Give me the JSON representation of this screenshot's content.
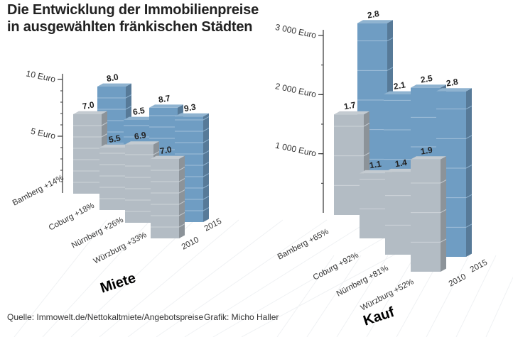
{
  "header": {
    "title_line1": "Die Entwicklung der Immobilienpreise",
    "title_line2": "in ausgewählten fränkischen Städten"
  },
  "footer": {
    "source": "Quelle: Immowelt.de/Nettokaltmiete/Angebotspreise",
    "credit": "Grafik: Micho Haller"
  },
  "colors": {
    "year_2010": "#b3bcc4",
    "year_2015": "#6f9dc3",
    "text": "#222222"
  },
  "chart_data": [
    {
      "type": "bar",
      "subtitle": "Miete",
      "unit": "Euro",
      "yticks": [
        "5 Euro",
        "10 Euro"
      ],
      "ytick_values": [
        5,
        10
      ],
      "ylim": [
        0,
        10
      ],
      "categories": [
        "Bamberg +14%",
        "Coburg +18%",
        "Nürnberg +26%",
        "Würzburg +33%"
      ],
      "years": [
        "2010",
        "2015"
      ],
      "series": [
        {
          "name": "2010",
          "values": [
            7.0,
            5.5,
            6.9,
            7.0
          ],
          "labels": [
            "7.0",
            "5.5",
            "6.9",
            "7.0"
          ]
        },
        {
          "name": "2015",
          "values": [
            8.0,
            6.5,
            8.7,
            9.3
          ],
          "labels": [
            "8.0",
            "6.5",
            "8.7",
            "9.3"
          ]
        }
      ]
    },
    {
      "type": "bar",
      "subtitle": "Kauf",
      "unit": "Euro",
      "yticks": [
        "1 000 Euro",
        "2 000 Euro",
        "3 000 Euro"
      ],
      "ytick_values": [
        1000,
        2000,
        3000
      ],
      "ylim": [
        0,
        3000
      ],
      "categories": [
        "Bamberg +65%",
        "Coburg +92%",
        "Nürnberg +81%",
        "Würzburg +52%"
      ],
      "years": [
        "2010",
        "2015"
      ],
      "series": [
        {
          "name": "2010",
          "values": [
            1700,
            1100,
            1400,
            1900
          ],
          "labels": [
            "1.7",
            "1.1",
            "1.4",
            "1.9"
          ]
        },
        {
          "name": "2015",
          "values": [
            2800,
            2100,
            2500,
            2800
          ],
          "labels": [
            "2.8",
            "2.1",
            "2.5",
            "2.8"
          ]
        }
      ]
    }
  ]
}
